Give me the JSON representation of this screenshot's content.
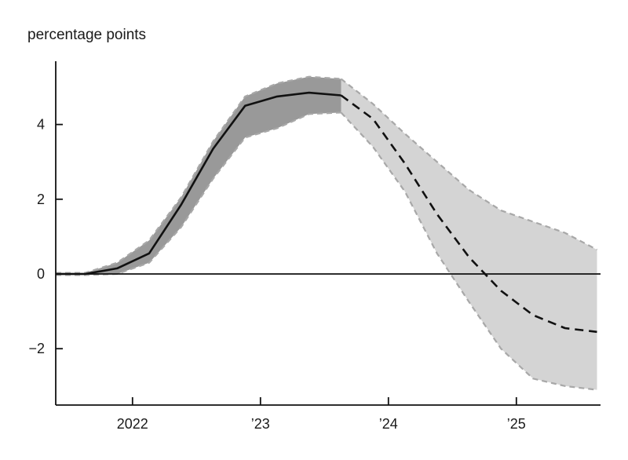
{
  "chart_data": {
    "type": "line",
    "ylabel": "percentage points",
    "ylim": [
      -3.5,
      5.8
    ],
    "xlim": [
      2021.4,
      2025.65
    ],
    "y_ticks": [
      {
        "value": 4,
        "label": "4"
      },
      {
        "value": 2,
        "label": "2"
      },
      {
        "value": 0,
        "label": "0"
      },
      {
        "value": -2,
        "label": "−2"
      }
    ],
    "x_ticks": [
      {
        "value": 2022.0,
        "label": "2022"
      },
      {
        "value": 2023.0,
        "label": "’23"
      },
      {
        "value": 2024.0,
        "label": "’24"
      },
      {
        "value": 2025.0,
        "label": "’25"
      }
    ],
    "zero_line": true,
    "series": [
      {
        "style": "solid",
        "color": "#111111",
        "x": [
          2021.4,
          2021.63,
          2021.88,
          2022.13,
          2022.38,
          2022.63,
          2022.88,
          2023.13,
          2023.38,
          2023.63
        ],
        "y": [
          0.0,
          0.0,
          0.15,
          0.55,
          1.85,
          3.35,
          4.5,
          4.75,
          4.85,
          4.78
        ]
      },
      {
        "style": "dashed",
        "color": "#111111",
        "x": [
          2023.63,
          2023.88,
          2024.13,
          2024.38,
          2024.63,
          2024.88,
          2025.13,
          2025.38,
          2025.63
        ],
        "y": [
          4.78,
          4.15,
          2.95,
          1.6,
          0.45,
          -0.45,
          -1.1,
          -1.45,
          -1.55
        ]
      }
    ],
    "bands": [
      {
        "fill": "#999999",
        "edge_color": "#a8a8a8",
        "x": [
          2021.4,
          2021.63,
          2021.88,
          2022.13,
          2022.38,
          2022.63,
          2022.88,
          2023.13,
          2023.38,
          2023.63
        ],
        "upper": [
          0.03,
          0.03,
          0.3,
          0.9,
          2.05,
          3.55,
          4.75,
          5.1,
          5.28,
          5.22
        ],
        "lower": [
          -0.03,
          -0.03,
          0.0,
          0.3,
          1.25,
          2.55,
          3.65,
          3.9,
          4.28,
          4.32
        ]
      },
      {
        "fill": "#d4d4d4",
        "edge_color": "#a8a8a8",
        "x": [
          2023.63,
          2023.88,
          2024.13,
          2024.38,
          2024.63,
          2024.88,
          2025.13,
          2025.38,
          2025.63
        ],
        "upper": [
          5.22,
          4.55,
          3.75,
          3.0,
          2.25,
          1.7,
          1.4,
          1.1,
          0.65
        ],
        "lower": [
          4.32,
          3.4,
          2.2,
          0.55,
          -0.75,
          -2.0,
          -2.8,
          -3.0,
          -3.1
        ]
      }
    ]
  }
}
